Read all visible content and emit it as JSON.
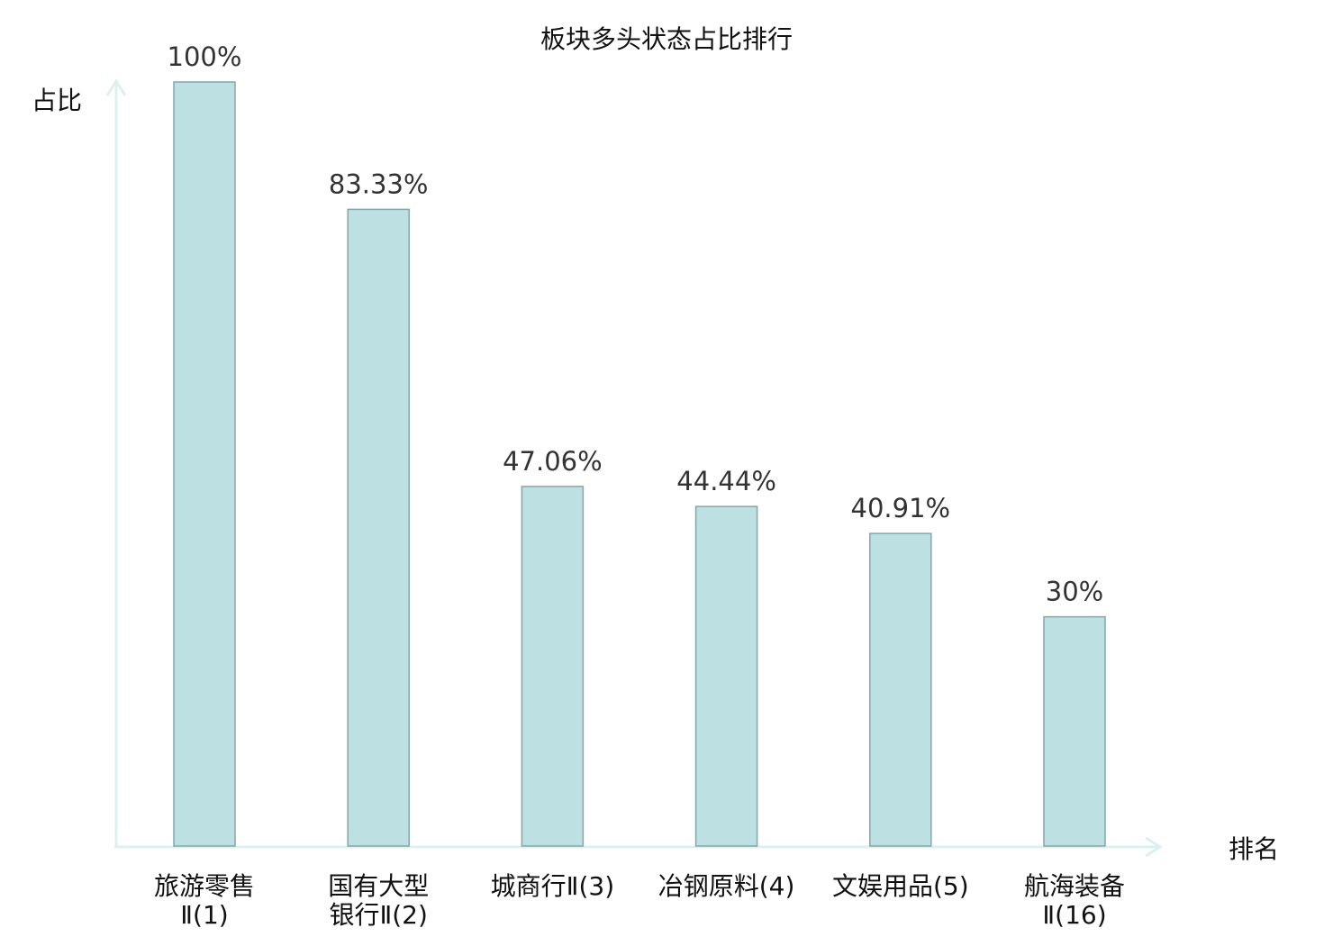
{
  "chart_data": {
    "type": "bar",
    "title": "板块多头状态占比排行",
    "xlabel": "排名",
    "ylabel": "占比",
    "ylim": [
      0,
      100
    ],
    "grid": false,
    "categories": [
      [
        "旅游零售",
        "Ⅱ(1)"
      ],
      [
        "国有大型",
        "银行Ⅱ(2)"
      ],
      [
        "城商行Ⅱ(3)"
      ],
      [
        "冶钢原料(4)"
      ],
      [
        "文娱用品(5)"
      ],
      [
        "航海装备",
        "Ⅱ(16)"
      ]
    ],
    "values": [
      100,
      83.33,
      47.06,
      44.44,
      40.91,
      30
    ],
    "value_labels": [
      "100%",
      "83.33%",
      "47.06%",
      "44.44%",
      "40.91%",
      "30%"
    ],
    "highlight_index": 5,
    "colors": {
      "bar_fill": "#bde0e3",
      "bar_stroke": "#86a6a8",
      "axis": "#dcf1ee",
      "highlight_text": "#e81010"
    }
  }
}
